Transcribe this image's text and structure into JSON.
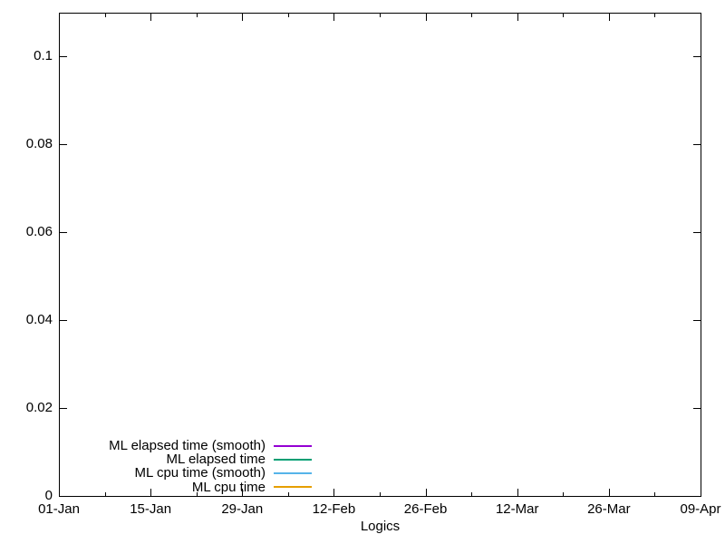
{
  "chart_data": {
    "type": "line",
    "title": "",
    "xlabel": "Logics",
    "ylabel": "",
    "x_tick_labels": [
      "01-Jan",
      "15-Jan",
      "29-Jan",
      "12-Feb",
      "26-Feb",
      "12-Mar",
      "26-Mar",
      "09-Apr"
    ],
    "x_minor_ticks_per_interval": 1,
    "y_ticks": [
      {
        "value": 0,
        "label": "0"
      },
      {
        "value": 0.02,
        "label": "0.02"
      },
      {
        "value": 0.04,
        "label": "0.04"
      },
      {
        "value": 0.06,
        "label": "0.06"
      },
      {
        "value": 0.08,
        "label": "0.08"
      },
      {
        "value": 0.1,
        "label": "0.1"
      }
    ],
    "ylim": [
      0,
      0.11
    ],
    "grid": false,
    "legend_position": "inside-bottom-left",
    "background_color": "#ffffff",
    "axis_color": "#000000",
    "text_color": "#000000",
    "series": [
      {
        "name": "ML elapsed time (smooth)",
        "color": "#9400d3",
        "values": []
      },
      {
        "name": "ML elapsed time",
        "color": "#009e73",
        "values": []
      },
      {
        "name": "ML cpu time (smooth)",
        "color": "#56b4e9",
        "values": []
      },
      {
        "name": "ML cpu time",
        "color": "#e69f00",
        "values": []
      }
    ]
  }
}
